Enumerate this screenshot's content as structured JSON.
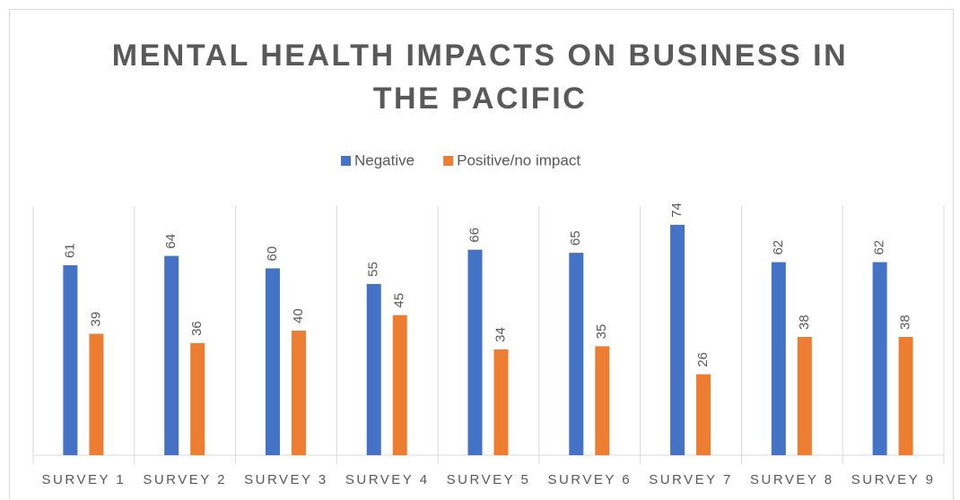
{
  "chart_data": {
    "type": "bar",
    "title": "MENTAL HEALTH IMPACTS ON BUSINESS IN THE PACIFIC",
    "categories": [
      "SURVEY 1",
      "SURVEY 2",
      "SURVEY 3",
      "SURVEY 4",
      "SURVEY 5",
      "SURVEY 6",
      "SURVEY 7",
      "SURVEY 8",
      "SURVEY 9"
    ],
    "series": [
      {
        "name": "Negative",
        "color": "#4472c4",
        "values": [
          61,
          64,
          60,
          55,
          66,
          65,
          74,
          62,
          62
        ]
      },
      {
        "name": "Positive/no impact",
        "color": "#ed7d31",
        "values": [
          39,
          36,
          40,
          45,
          34,
          35,
          26,
          38,
          38
        ]
      }
    ],
    "ylim": [
      0,
      80
    ],
    "legend": "top"
  }
}
